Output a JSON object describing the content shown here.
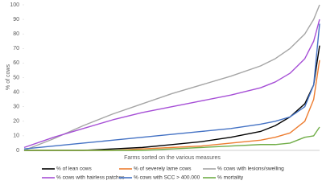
{
  "chart_data": {
    "type": "line",
    "y_label": "% of cows",
    "x_label": "Farms sorted on the various measures",
    "x": [
      0,
      10,
      20,
      30,
      40,
      50,
      60,
      70,
      80,
      85,
      90,
      95,
      98,
      100
    ],
    "xlim": [
      0,
      100
    ],
    "ylim": [
      0,
      100
    ],
    "yticks": [
      0,
      10,
      20,
      30,
      40,
      50,
      60,
      70,
      80,
      90,
      100
    ],
    "grid": false,
    "legend": "bottom",
    "series": [
      {
        "name": "% of lean cows",
        "color": "#000000",
        "values": [
          0,
          0,
          0,
          1,
          2,
          4,
          6,
          9,
          13,
          17,
          23,
          32,
          45,
          72
        ]
      },
      {
        "name": "% of severely lame cows",
        "color": "#ed7d31",
        "values": [
          0,
          0,
          0,
          0,
          1,
          2,
          3,
          5,
          7,
          9,
          12,
          20,
          35,
          62
        ]
      },
      {
        "name": "% cows with lesions/swelling",
        "color": "#a5a5a5",
        "values": [
          0,
          8,
          17,
          25,
          32,
          39,
          45,
          51,
          58,
          63,
          70,
          80,
          90,
          100
        ]
      },
      {
        "name": "% cows with hairless patches",
        "color": "#a64fd6",
        "values": [
          2,
          9,
          15,
          21,
          26,
          30,
          34,
          38,
          43,
          47,
          53,
          63,
          75,
          90
        ]
      },
      {
        "name": "% cows with SCC > 400.000",
        "color": "#4472c4",
        "values": [
          1,
          3,
          5,
          7,
          9,
          11,
          13,
          15,
          18,
          20,
          23,
          30,
          45,
          87
        ]
      },
      {
        "name": "% mortality",
        "color": "#70ad47",
        "values": [
          0,
          0,
          0,
          0,
          0,
          1,
          2,
          3,
          4,
          4,
          5,
          9,
          10,
          16
        ]
      }
    ]
  }
}
